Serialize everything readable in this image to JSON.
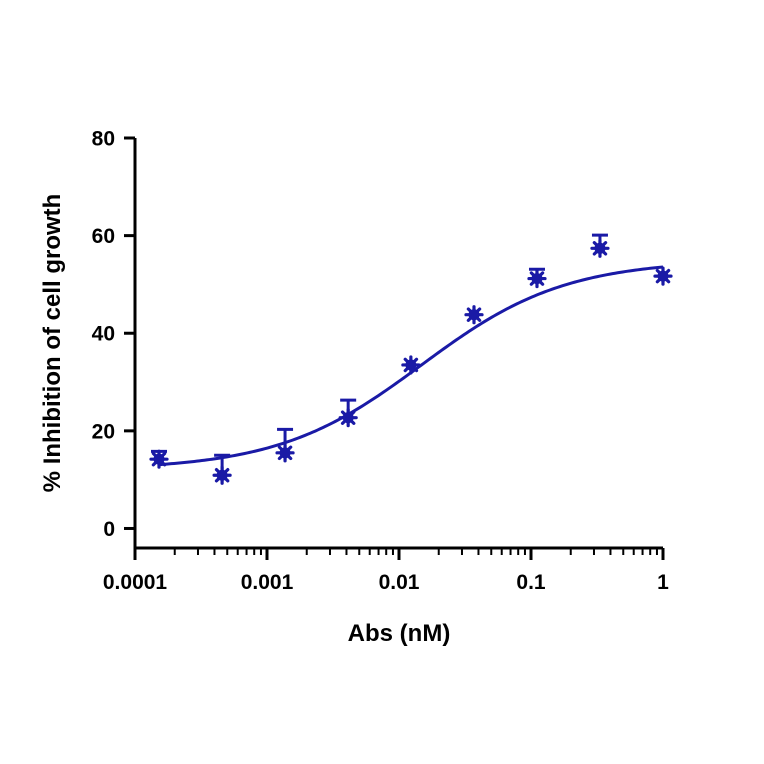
{
  "chart_data": {
    "type": "scatter",
    "xlabel": "Abs (nM)",
    "ylabel": "% Inhibition of cell growth",
    "x_scale": "log",
    "xlim": [
      0.0001,
      1
    ],
    "ylim": [
      -4,
      80
    ],
    "x_ticks": [
      0.0001,
      0.001,
      0.01,
      0.1,
      1
    ],
    "x_tick_labels": [
      "0.0001",
      "0.001",
      "0.01",
      "0.1",
      "1"
    ],
    "y_ticks": [
      0,
      20,
      40,
      60,
      80
    ],
    "y_tick_labels": [
      "0",
      "20",
      "40",
      "60",
      "80"
    ],
    "grid": false,
    "color": "#1a1aa6",
    "series": [
      {
        "points": [
          {
            "x": 0.000152,
            "y": 14.2,
            "err": 1.6
          },
          {
            "x": 0.000457,
            "y": 10.9,
            "err": 4.1
          },
          {
            "x": 0.00137,
            "y": 15.5,
            "err": 4.8
          },
          {
            "x": 0.00412,
            "y": 22.7,
            "err": 3.6
          },
          {
            "x": 0.0123,
            "y": 33.5,
            "err": 0
          },
          {
            "x": 0.037,
            "y": 43.8,
            "err": 0
          },
          {
            "x": 0.111,
            "y": 51.2,
            "err": 1.9
          },
          {
            "x": 0.333,
            "y": 57.4,
            "err": 2.7
          },
          {
            "x": 1.0,
            "y": 51.7,
            "err": 0
          }
        ],
        "fit": {
          "model": "4PL",
          "bottom": 12.0,
          "top": 55.0,
          "ec50": 0.0148,
          "hill": 0.8
        }
      }
    ]
  }
}
